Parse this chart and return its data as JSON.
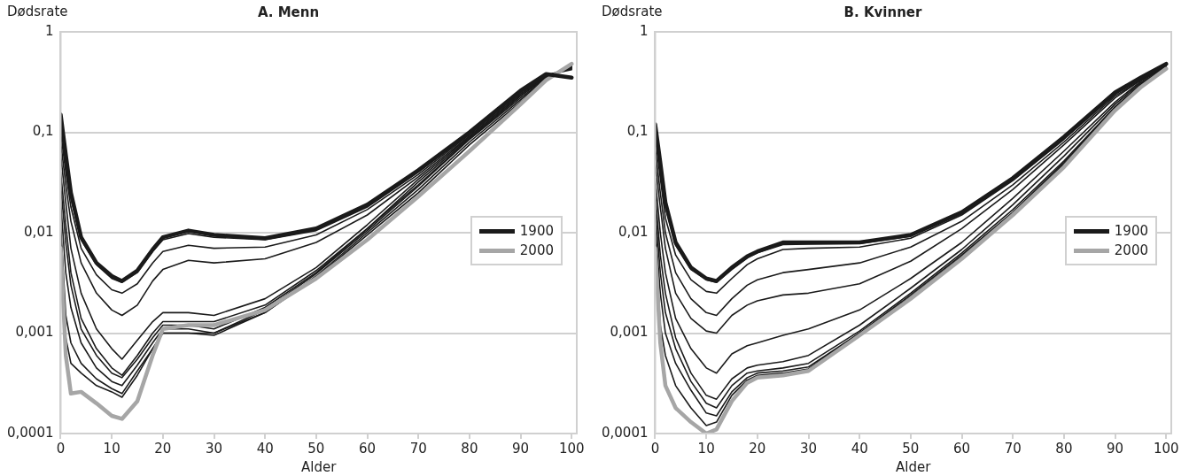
{
  "chart_data": [
    {
      "type": "line",
      "title": "A. Menn",
      "xlabel": "Alder",
      "ylabel": "Dødsrate",
      "log": true,
      "grid": "y",
      "legend": "right",
      "marker": "none",
      "xlim": [
        0,
        101
      ],
      "xticks": [
        0,
        10,
        20,
        30,
        40,
        50,
        60,
        70,
        80,
        90,
        100
      ],
      "ylim": [
        0.0001,
        1
      ],
      "yticks": [
        {
          "value": 0.0001,
          "label": "0,0001"
        },
        {
          "value": 0.001,
          "label": "0,001"
        },
        {
          "value": 0.01,
          "label": "0,01"
        },
        {
          "value": 0.1,
          "label": "0,1"
        },
        1
      ],
      "x": [
        0,
        1,
        2,
        4,
        7,
        10,
        12,
        15,
        18,
        20,
        25,
        30,
        40,
        50,
        60,
        70,
        80,
        90,
        95,
        100
      ],
      "series": [
        {
          "name": "1900",
          "color": "#1a1a1a",
          "values": [
            0.15,
            0.06,
            0.025,
            0.009,
            0.005,
            0.0037,
            0.0033,
            0.0042,
            0.0068,
            0.009,
            0.0105,
            0.0095,
            0.0088,
            0.011,
            0.019,
            0.042,
            0.1,
            0.26,
            0.38,
            0.35
          ]
        },
        {
          "color": "#1a1a1a",
          "values": [
            0.13,
            0.05,
            0.022,
            0.0085,
            0.0048,
            0.0035,
            0.0032,
            0.004,
            0.0065,
            0.0085,
            0.0098,
            0.009,
            0.0085,
            0.0105,
            0.018,
            0.04,
            0.098,
            0.25,
            0.37,
            0.42
          ]
        },
        {
          "color": "#1a1a1a",
          "values": [
            0.1,
            0.04,
            0.018,
            0.007,
            0.0038,
            0.0027,
            0.0025,
            0.0031,
            0.005,
            0.0065,
            0.0075,
            0.007,
            0.0072,
            0.0095,
            0.017,
            0.038,
            0.095,
            0.25,
            0.37,
            0.43
          ]
        },
        {
          "color": "#1a1a1a",
          "values": [
            0.08,
            0.03,
            0.013,
            0.005,
            0.0025,
            0.0017,
            0.0015,
            0.0019,
            0.0033,
            0.0043,
            0.0053,
            0.005,
            0.0055,
            0.008,
            0.015,
            0.036,
            0.092,
            0.24,
            0.36,
            0.44
          ]
        },
        {
          "color": "#1a1a1a",
          "values": [
            0.06,
            0.02,
            0.007,
            0.0025,
            0.0011,
            0.0007,
            0.00055,
            0.00085,
            0.0013,
            0.0016,
            0.0016,
            0.0015,
            0.0022,
            0.0045,
            0.012,
            0.034,
            0.09,
            0.24,
            0.36,
            0.45
          ]
        },
        {
          "color": "#1a1a1a",
          "values": [
            0.04,
            0.012,
            0.004,
            0.0014,
            0.0007,
            0.00045,
            0.00038,
            0.0006,
            0.001,
            0.0013,
            0.0013,
            0.0013,
            0.0019,
            0.0042,
            0.011,
            0.032,
            0.088,
            0.23,
            0.35,
            0.45
          ]
        },
        {
          "color": "#1a1a1a",
          "values": [
            0.03,
            0.008,
            0.003,
            0.0011,
            0.0006,
            0.0004,
            0.00036,
            0.00055,
            0.0009,
            0.0012,
            0.0012,
            0.0011,
            0.0018,
            0.004,
            0.011,
            0.03,
            0.086,
            0.23,
            0.35,
            0.46
          ]
        },
        {
          "color": "#1a1a1a",
          "values": [
            0.02,
            0.004,
            0.0018,
            0.0008,
            0.00045,
            0.00033,
            0.0003,
            0.00048,
            0.0008,
            0.0011,
            0.0011,
            0.001,
            0.0017,
            0.0039,
            0.0105,
            0.029,
            0.085,
            0.22,
            0.34,
            0.46
          ]
        },
        {
          "color": "#1a1a1a",
          "values": [
            0.012,
            0.0015,
            0.0008,
            0.0005,
            0.00035,
            0.00028,
            0.00025,
            0.00042,
            0.0007,
            0.001,
            0.001,
            0.001,
            0.0016,
            0.0037,
            0.01,
            0.027,
            0.08,
            0.21,
            0.34,
            0.47
          ]
        },
        {
          "color": "#1a1a1a",
          "values": [
            0.009,
            0.0009,
            0.0005,
            0.0004,
            0.0003,
            0.00026,
            0.00023,
            0.00038,
            0.0007,
            0.001,
            0.001,
            0.00095,
            0.0016,
            0.0036,
            0.0095,
            0.025,
            0.075,
            0.2,
            0.33,
            0.47
          ]
        },
        {
          "name": "2000",
          "color": "#a6a6a6",
          "values": [
            0.007,
            0.0006,
            0.00025,
            0.00026,
            0.0002,
            0.00015,
            0.00014,
            0.00021,
            0.0006,
            0.0011,
            0.0012,
            0.0012,
            0.0017,
            0.0035,
            0.0085,
            0.023,
            0.065,
            0.19,
            0.33,
            0.48
          ]
        }
      ]
    },
    {
      "type": "line",
      "title": "B. Kvinner",
      "xlabel": "Alder",
      "ylabel": "Dødsrate",
      "log": true,
      "grid": "y",
      "legend": "right",
      "marker": "none",
      "xlim": [
        0,
        101
      ],
      "xticks": [
        0,
        10,
        20,
        30,
        40,
        50,
        60,
        70,
        80,
        90,
        100
      ],
      "ylim": [
        0.0001,
        1
      ],
      "yticks": [
        {
          "value": 0.0001,
          "label": "0,0001"
        },
        {
          "value": 0.001,
          "label": "0,001"
        },
        {
          "value": 0.01,
          "label": "0,01"
        },
        {
          "value": 0.1,
          "label": "0,1"
        },
        1
      ],
      "x": [
        0,
        1,
        2,
        4,
        7,
        10,
        12,
        15,
        18,
        20,
        25,
        30,
        40,
        50,
        60,
        70,
        80,
        90,
        95,
        100
      ],
      "series": [
        {
          "name": "1900",
          "color": "#1a1a1a",
          "values": [
            0.12,
            0.05,
            0.02,
            0.008,
            0.0045,
            0.0035,
            0.0033,
            0.0045,
            0.0058,
            0.0065,
            0.008,
            0.008,
            0.008,
            0.0095,
            0.016,
            0.035,
            0.09,
            0.25,
            0.35,
            0.48
          ]
        },
        {
          "color": "#1a1a1a",
          "values": [
            0.11,
            0.045,
            0.018,
            0.0075,
            0.0043,
            0.0034,
            0.0032,
            0.0043,
            0.0056,
            0.0063,
            0.0076,
            0.0077,
            0.0078,
            0.0092,
            0.0155,
            0.034,
            0.088,
            0.24,
            0.34,
            0.46
          ]
        },
        {
          "color": "#1a1a1a",
          "values": [
            0.09,
            0.035,
            0.014,
            0.006,
            0.0034,
            0.0026,
            0.0025,
            0.0035,
            0.0048,
            0.0055,
            0.0068,
            0.007,
            0.0072,
            0.0088,
            0.015,
            0.033,
            0.085,
            0.24,
            0.34,
            0.46
          ]
        },
        {
          "color": "#1a1a1a",
          "values": [
            0.07,
            0.025,
            0.01,
            0.004,
            0.0022,
            0.0016,
            0.0015,
            0.0022,
            0.003,
            0.0034,
            0.004,
            0.0043,
            0.005,
            0.0072,
            0.013,
            0.03,
            0.08,
            0.23,
            0.33,
            0.45
          ]
        },
        {
          "color": "#1a1a1a",
          "values": [
            0.05,
            0.018,
            0.007,
            0.0025,
            0.0014,
            0.00105,
            0.001,
            0.0015,
            0.0019,
            0.0021,
            0.0024,
            0.0025,
            0.0031,
            0.0052,
            0.011,
            0.027,
            0.075,
            0.22,
            0.33,
            0.45
          ]
        },
        {
          "color": "#1a1a1a",
          "values": [
            0.035,
            0.01,
            0.004,
            0.0014,
            0.0007,
            0.00045,
            0.0004,
            0.00062,
            0.00075,
            0.0008,
            0.00095,
            0.0011,
            0.0017,
            0.0035,
            0.008,
            0.022,
            0.065,
            0.2,
            0.32,
            0.45
          ]
        },
        {
          "color": "#1a1a1a",
          "values": [
            0.025,
            0.006,
            0.0025,
            0.0009,
            0.0004,
            0.00024,
            0.00022,
            0.00035,
            0.00045,
            0.00048,
            0.00052,
            0.0006,
            0.0012,
            0.0028,
            0.0068,
            0.019,
            0.058,
            0.19,
            0.31,
            0.44
          ]
        },
        {
          "color": "#1a1a1a",
          "values": [
            0.018,
            0.004,
            0.0016,
            0.0007,
            0.00033,
            0.0002,
            0.00018,
            0.0003,
            0.0004,
            0.00042,
            0.00045,
            0.0005,
            0.00105,
            0.0025,
            0.0063,
            0.017,
            0.052,
            0.18,
            0.3,
            0.44
          ]
        },
        {
          "color": "#1a1a1a",
          "values": [
            0.012,
            0.0025,
            0.001,
            0.0005,
            0.00027,
            0.00016,
            0.00015,
            0.00026,
            0.00036,
            0.0004,
            0.00042,
            0.00046,
            0.001,
            0.0024,
            0.006,
            0.016,
            0.05,
            0.175,
            0.3,
            0.44
          ]
        },
        {
          "color": "#1a1a1a",
          "values": [
            0.009,
            0.0012,
            0.0006,
            0.0003,
            0.00018,
            0.00012,
            0.00013,
            0.00024,
            0.00034,
            0.00038,
            0.0004,
            0.00044,
            0.001,
            0.0023,
            0.0058,
            0.0155,
            0.048,
            0.17,
            0.29,
            0.44
          ]
        },
        {
          "name": "2000",
          "color": "#a6a6a6",
          "values": [
            0.007,
            0.0008,
            0.0003,
            0.00018,
            0.00013,
            0.0001,
            0.00011,
            0.00021,
            0.00032,
            0.00036,
            0.00038,
            0.00042,
            0.00095,
            0.0022,
            0.0055,
            0.015,
            0.045,
            0.165,
            0.28,
            0.43
          ]
        }
      ]
    }
  ]
}
